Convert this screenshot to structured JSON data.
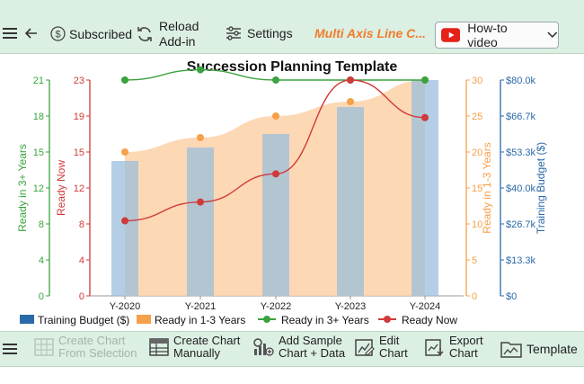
{
  "toolbar": {
    "subscribed_label": "Subscribed",
    "reload_label_line1": "Reload",
    "reload_label_line2": "Add-in",
    "settings_label": "Settings",
    "product_title": "Multi Axis Line C...",
    "howto_label": "How-to video"
  },
  "bottom_toolbar": {
    "create_from_selection_line1": "Create Chart",
    "create_from_selection_line2": "From Selection",
    "create_manually_line1": "Create Chart",
    "create_manually_line2": "Manually",
    "add_sample_line1": "Add Sample",
    "add_sample_line2": "Chart + Data",
    "edit_chart_line1": "Edit",
    "edit_chart_line2": "Chart",
    "export_chart_line1": "Export",
    "export_chart_line2": "Chart",
    "template_label": "Template"
  },
  "colors": {
    "green": "#3aa33f",
    "red": "#d03a3a",
    "orange": "#f5a04a",
    "orange_fill": "#fdd1a8",
    "blue": "#2a6aa8",
    "bar_fill": "#9bbfdc",
    "brand_orange": "#f07c2b"
  },
  "chart_data": {
    "type": "line",
    "title": "Succession Planning Template",
    "categories": [
      "Y-2020",
      "Y-2021",
      "Y-2022",
      "Y-2023",
      "Y-2024"
    ],
    "series": [
      {
        "name": "Training Budget ($)",
        "kind": "bar",
        "axis": "Training Budget ($)",
        "values": [
          50000,
          55000,
          60000,
          70000,
          80000
        ]
      },
      {
        "name": "Ready in 1-3 Years",
        "kind": "area",
        "axis": "Ready in 1-3 Years",
        "values": [
          20,
          22,
          25,
          27,
          30
        ]
      },
      {
        "name": "Ready in 3+ Years",
        "kind": "line",
        "axis": "Ready in 3+ Years",
        "values": [
          21,
          22,
          21,
          21,
          21
        ]
      },
      {
        "name": "Ready Now",
        "kind": "line",
        "axis": "Ready Now",
        "values": [
          8,
          10,
          13,
          23,
          19
        ]
      }
    ],
    "axes": [
      {
        "label": "Ready in 3+ Years",
        "side": "left",
        "ticks": [
          "0",
          "4",
          "8",
          "12",
          "15",
          "18",
          "21"
        ],
        "ylim": [
          0,
          21
        ]
      },
      {
        "label": "Ready Now",
        "side": "left",
        "ticks": [
          "0",
          "4",
          "8",
          "12",
          "15",
          "19",
          "23"
        ],
        "ylim": [
          0,
          23
        ]
      },
      {
        "label": "Ready in 1-3 Years",
        "side": "right",
        "ticks": [
          "0",
          "5",
          "10",
          "15",
          "20",
          "25",
          "30"
        ],
        "ylim": [
          0,
          30
        ]
      },
      {
        "label": "Training Budget ($)",
        "side": "right",
        "ticks": [
          "$0",
          "$13.3k",
          "$26.7k",
          "$40.0k",
          "$53.3k",
          "$66.7k",
          "$80.0k"
        ],
        "ylim": [
          0,
          80000
        ]
      }
    ],
    "legend_position": "bottom-left",
    "grid": false
  }
}
